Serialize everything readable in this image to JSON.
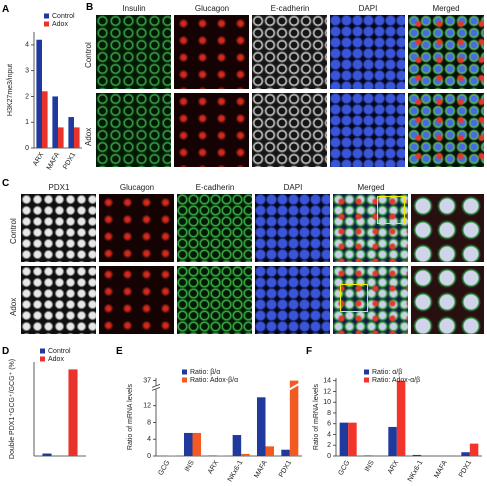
{
  "panel_labels": [
    "A",
    "B",
    "C",
    "D",
    "E",
    "F"
  ],
  "panel_b": {
    "columns": [
      "Insulin",
      "Glucagon",
      "E-cadherin",
      "DAPI",
      "Merged"
    ],
    "rows": [
      "Control",
      "Adox"
    ]
  },
  "panel_c": {
    "columns": [
      "PDX1",
      "Glucagon",
      "E-cadherin",
      "DAPI",
      "Merged"
    ],
    "rows": [
      "Control",
      "Adox"
    ]
  },
  "chart_data": [
    {
      "type": "bar",
      "y_label": "H3K27me3/input",
      "categories": [
        "ARX",
        "MAFA",
        "PDX1"
      ],
      "series": [
        {
          "name": "Control",
          "color": "#1f3a9c",
          "values": [
            4.2,
            2.0,
            1.2
          ]
        },
        {
          "name": "Adox",
          "color": "#e8322a",
          "values": [
            2.2,
            0.8,
            0.8
          ]
        }
      ],
      "ylim": [
        0,
        4.5
      ],
      "yticks": [
        0,
        1,
        2,
        3,
        4
      ]
    },
    {
      "type": "bar",
      "y_label": "Double PDX1⁺GCG⁺/GCG⁺ (%)",
      "categories": [
        null,
        null
      ],
      "series": [
        {
          "name": "Control",
          "color": "#1f3a9c",
          "values": [
            0.5,
            null
          ]
        },
        {
          "name": "Adox",
          "color": "#e8322a",
          "values": [
            null,
            17.5
          ]
        }
      ],
      "ylim": [
        0,
        19
      ]
    },
    {
      "type": "bar",
      "y_label": "Ratio of mRNA levels",
      "categories": [
        "GCG",
        "INS",
        "ARX",
        "NKx6-1",
        "MAFA",
        "PDX1"
      ],
      "series": [
        {
          "name": "Ratio: β/α",
          "color": "#1f3a9c",
          "values": [
            0,
            5.5,
            0.1,
            5,
            14,
            1.5
          ]
        },
        {
          "name": "Ratio: Adox-β/α",
          "color": "#f25a22",
          "values": [
            0.1,
            5.5,
            0.1,
            0.5,
            2.3,
            37
          ]
        }
      ],
      "ylim": [
        0,
        38
      ],
      "axis_break": [
        16,
        35
      ],
      "yticks": [
        0,
        4,
        8,
        12,
        37
      ]
    },
    {
      "type": "bar",
      "y_label": "Ratio of mRNA levels",
      "categories": [
        "GCG",
        "INS",
        "ARX",
        "NKx6-1",
        "MAFA",
        "PDX1"
      ],
      "series": [
        {
          "name": "Ratio: α/β",
          "color": "#1f3a9c",
          "values": [
            6.2,
            0.1,
            5.4,
            0.2,
            0,
            0.7
          ]
        },
        {
          "name": "Ratio: Adox-α/β",
          "color": "#f2342a",
          "values": [
            6.2,
            0.1,
            14,
            0.1,
            0,
            2.3
          ]
        }
      ],
      "ylim": [
        0,
        14.5
      ],
      "yticks": [
        0,
        2,
        4,
        6,
        8,
        10,
        12,
        14
      ]
    }
  ]
}
